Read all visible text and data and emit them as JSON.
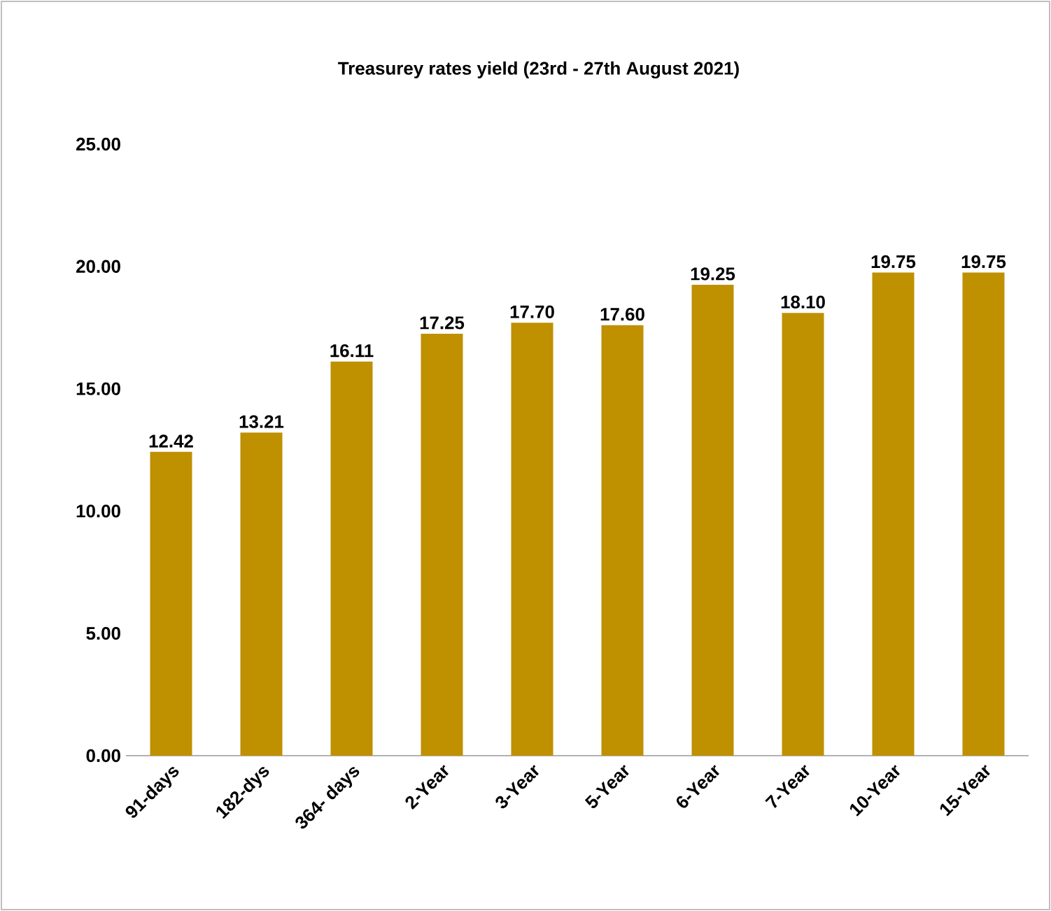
{
  "chart_data": {
    "type": "bar",
    "title": "Treasurey rates yield (23rd - 27th August 2021)",
    "categories": [
      "91-days",
      "182-dys",
      "364- days",
      "2-Year",
      "3-Year",
      "5-Year",
      "6-Year",
      "7-Year",
      "10-Year",
      "15-Year"
    ],
    "values": [
      12.42,
      13.21,
      16.11,
      17.25,
      17.7,
      17.6,
      19.25,
      18.1,
      19.75,
      19.75
    ],
    "value_labels": [
      "12.42",
      "13.21",
      "16.11",
      "17.25",
      "17.70",
      "17.60",
      "19.25",
      "18.10",
      "19.75",
      "19.75"
    ],
    "color": "#bf9000",
    "ylim": [
      0,
      25
    ],
    "yticks": [
      {
        "value": 0,
        "label": "0.00"
      },
      {
        "value": 5,
        "label": "5.00"
      },
      {
        "value": 10,
        "label": "10.00"
      },
      {
        "value": 15,
        "label": "15.00"
      },
      {
        "value": 20,
        "label": "20.00"
      },
      {
        "value": 25,
        "label": "25.00"
      }
    ]
  }
}
